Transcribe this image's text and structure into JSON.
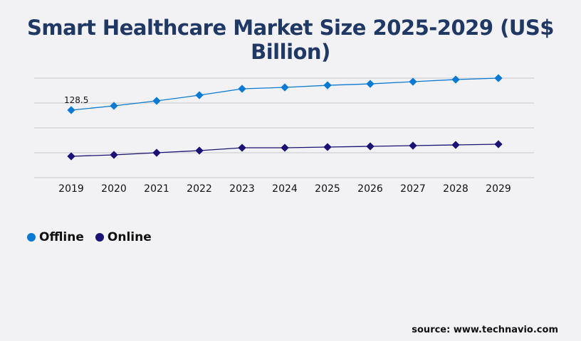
{
  "title": "Smart Healthcare Market Size 2025-2029 (US$ Billion)",
  "source": "source: www.technavio.com",
  "chart_data": {
    "type": "line",
    "title": "Smart Healthcare Market Size 2025-2029 (US$ Billion)",
    "categories": [
      "2019",
      "2020",
      "2021",
      "2022",
      "2023",
      "2024",
      "2025",
      "2026",
      "2027",
      "2028",
      "2029"
    ],
    "series": [
      {
        "name": "Offline",
        "color": "#0a7ad4",
        "values": [
          128.5,
          136.6,
          146.1,
          156.9,
          169.1,
          171.8,
          175.8,
          178.5,
          182.6,
          186.7,
          189.4
        ]
      },
      {
        "name": "Online",
        "color": "#1a1274",
        "values": [
          40.6,
          43.3,
          47.3,
          51.4,
          56.8,
          56.8,
          58.2,
          59.5,
          60.9,
          62.2,
          63.6
        ]
      }
    ],
    "annotations": [
      {
        "series": "Offline",
        "category": "2019",
        "text": "128.5"
      }
    ],
    "ylim": [
      0,
      189.4
    ],
    "grid": true,
    "legend": "bottom-left"
  }
}
